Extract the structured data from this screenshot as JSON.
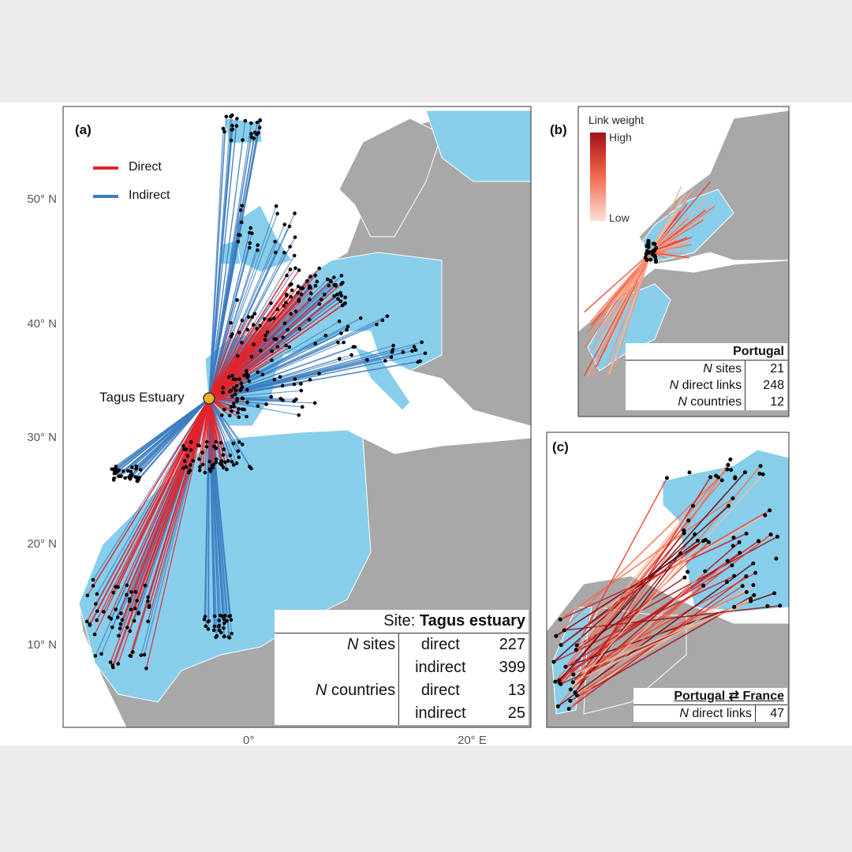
{
  "panel_a": {
    "label": "(a)",
    "legend": [
      {
        "label": "Direct",
        "color": "#e3242b"
      },
      {
        "label": "Indirect",
        "color": "#3b7cc1"
      }
    ],
    "site_label": "Tagus Estuary",
    "y_axis_labels": [
      "50° N",
      "40° N",
      "30° N",
      "20° N",
      "10° N"
    ],
    "x_axis_labels": [
      "0°",
      "20° E"
    ],
    "table": {
      "title_prefix": "Site:",
      "title": "Tagus estuary",
      "rows": [
        {
          "group": "N sites",
          "kind": "direct",
          "count": 227
        },
        {
          "kind": "indirect",
          "count": 399
        },
        {
          "group": "N countries",
          "kind": "direct",
          "count": 13
        },
        {
          "kind": "indirect",
          "count": 25
        }
      ]
    }
  },
  "panel_b": {
    "label": "(b)",
    "legend_title": "Link weight",
    "legend_high": "High",
    "legend_low": "Low",
    "table": {
      "title": "Portugal",
      "rows": [
        {
          "label": "N sites",
          "count": 21
        },
        {
          "label": "N direct links",
          "count": 248
        },
        {
          "label": "N countries",
          "count": 12
        }
      ]
    }
  },
  "panel_c": {
    "label": "(c)",
    "table": {
      "title": "Portugal ⇄ France",
      "rows": [
        {
          "label": "N direct links",
          "count": 47
        }
      ]
    }
  }
}
